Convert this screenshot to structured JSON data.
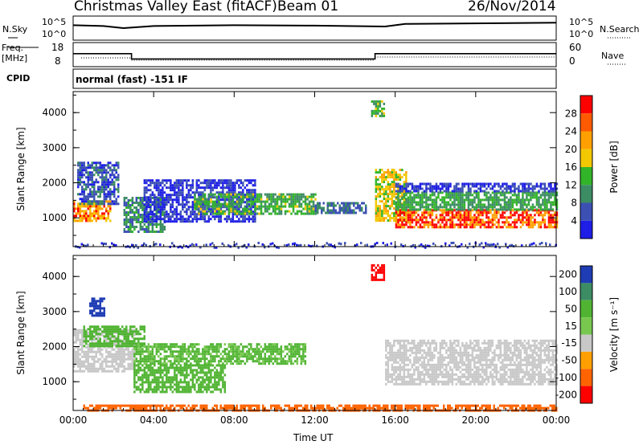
{
  "header": {
    "title": "Christmas Valley East (fitACF)",
    "beam": "Beam 01",
    "date": "26/Nov/2014"
  },
  "panels": {
    "nsky": {
      "left_label": "N.Sky",
      "right_label": "N.Search",
      "ticks_left": [
        "10^5",
        "10^0"
      ],
      "ticks_right": [
        "10^5",
        "10^0"
      ]
    },
    "freq": {
      "left_label_1": "Freq.",
      "left_label_2": "[MHz]",
      "right_label": "Nave",
      "ticks_left": [
        "18",
        "8"
      ],
      "ticks_right": [
        "60",
        "0"
      ]
    },
    "cpid": {
      "label": "CPID",
      "value": "normal (fast) -151 IF"
    }
  },
  "chart_data": [
    {
      "type": "heatmap",
      "parameter": "power",
      "ylabel": "Slant Range [km]",
      "xlabel": "Time UT",
      "x_ticks": [
        "00:00",
        "04:00",
        "08:00",
        "12:00",
        "16:00",
        "20:00",
        "00:00"
      ],
      "y_ticks": [
        1000,
        2000,
        3000,
        4000
      ],
      "ylim": [
        180,
        4600
      ],
      "colorbar": {
        "label": "Power [dB]",
        "ticks": [
          28,
          24,
          20,
          16,
          12,
          8,
          4
        ],
        "colors": [
          "#ff0000",
          "#ff5a00",
          "#ffa000",
          "#f2c800",
          "#32b428",
          "#3c8c64",
          "#3c50b4",
          "#1e1ee6"
        ]
      },
      "nsky_trace": [
        [
          0,
          3
        ],
        [
          1.5,
          2.8
        ],
        [
          2.5,
          2.3
        ],
        [
          4,
          2.8
        ],
        [
          8,
          3
        ],
        [
          12,
          2.9
        ],
        [
          15.5,
          2.7
        ],
        [
          16.5,
          3.3
        ],
        [
          24,
          3.6
        ]
      ],
      "freq_steps": [
        [
          0,
          14
        ],
        [
          2.9,
          14
        ],
        [
          2.9,
          11
        ],
        [
          15,
          11
        ],
        [
          15,
          14
        ],
        [
          24,
          14
        ]
      ],
      "regions": [
        {
          "t": [
            0.0,
            1.8
          ],
          "r": [
            900,
            1500
          ],
          "power": 26
        },
        {
          "t": [
            0.2,
            2.2
          ],
          "r": [
            1400,
            2600
          ],
          "power": 10
        },
        {
          "t": [
            2.5,
            4.5
          ],
          "r": [
            600,
            1600
          ],
          "power": 14
        },
        {
          "t": [
            3.5,
            9.0
          ],
          "r": [
            900,
            2100
          ],
          "power": 7
        },
        {
          "t": [
            6.0,
            12.0
          ],
          "r": [
            1100,
            1700
          ],
          "power": 17
        },
        {
          "t": [
            12.0,
            14.5
          ],
          "r": [
            1150,
            1450
          ],
          "power": 12
        },
        {
          "t": [
            15.0,
            16.5
          ],
          "r": [
            900,
            2400
          ],
          "power": 22
        },
        {
          "t": [
            16.0,
            24.0
          ],
          "r": [
            750,
            1250
          ],
          "power": 29
        },
        {
          "t": [
            16.0,
            24.0
          ],
          "r": [
            1250,
            1750
          ],
          "power": 16
        },
        {
          "t": [
            16.0,
            24.0
          ],
          "r": [
            1750,
            2000
          ],
          "power": 8
        },
        {
          "t": [
            14.8,
            15.4
          ],
          "r": [
            3900,
            4350
          ],
          "power": 18
        }
      ]
    },
    {
      "type": "heatmap",
      "parameter": "velocity",
      "ylabel": "Slant Range [km]",
      "xlabel": "Time UT",
      "x_ticks": [
        "00:00",
        "04:00",
        "08:00",
        "12:00",
        "16:00",
        "20:00",
        "00:00"
      ],
      "y_ticks": [
        1000,
        2000,
        3000,
        4000
      ],
      "ylim": [
        180,
        4600
      ],
      "colorbar": {
        "label": "Velocity [m s⁻¹]",
        "ticks": [
          200,
          100,
          50,
          15,
          -15,
          -50,
          -100,
          -200
        ],
        "colors": [
          "#1e3cb4",
          "#3c8c64",
          "#50b432",
          "#78c850",
          "#c8c8c8",
          "#ffa000",
          "#ff6400",
          "#ff0000"
        ]
      },
      "regions": [
        {
          "t": [
            0.0,
            3.0
          ],
          "r": [
            1300,
            2500
          ],
          "velocity": 0
        },
        {
          "t": [
            0.5,
            3.5
          ],
          "r": [
            2000,
            2600
          ],
          "velocity": 40
        },
        {
          "t": [
            3.0,
            11.5
          ],
          "r": [
            1500,
            2100
          ],
          "velocity": 35
        },
        {
          "t": [
            3.0,
            7.5
          ],
          "r": [
            700,
            1500
          ],
          "velocity": 45
        },
        {
          "t": [
            15.5,
            24.0
          ],
          "r": [
            900,
            2200
          ],
          "velocity": 0
        },
        {
          "t": [
            0.5,
            24.0
          ],
          "r": [
            200,
            350
          ],
          "velocity": -60
        },
        {
          "t": [
            14.8,
            15.4
          ],
          "r": [
            3900,
            4350
          ],
          "velocity": -200
        },
        {
          "t": [
            0.8,
            1.5
          ],
          "r": [
            2900,
            3400
          ],
          "velocity": 200
        }
      ]
    }
  ]
}
